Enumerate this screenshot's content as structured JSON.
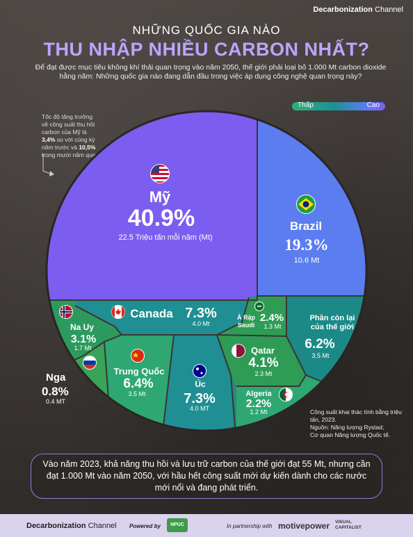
{
  "brand": {
    "name_bold": "Decarbonization",
    "name_light": "Channel"
  },
  "header": {
    "title_line1": "NHỮNG QUỐC GIA NÀO",
    "title_line2": "THU NHẬP NHIỀU CARBON NHẤT?",
    "subtitle": "Để đạt được mục tiêu không khí thải quan trọng vào năm 2050, thế giới phải loại bỏ 1.000 Mt carbon dioxide hằng năm: Những quốc gia nào đang dẫn đầu trong việc áp dụng công nghệ quan trọng này?"
  },
  "legend": {
    "low": "Thấp",
    "high": "Cao"
  },
  "note_usa": {
    "text_a": "Tốc độ tăng trưởng về công suất thu hồi carbon của Mỹ là ",
    "rate1": "3,4%",
    "text_b": " so với cùng kỳ năm trước và ",
    "rate2": "10,5%",
    "text_c": " trong mười năm qua."
  },
  "chart_data": {
    "type": "treemap",
    "unit": "Mt",
    "items": [
      {
        "name": "Mỹ",
        "pct": "40.9%",
        "value": 22.5,
        "value_label": "22.5 Triệu tấn mỗi năm (Mt)",
        "color": "#7b5ef0",
        "flag": "us-flag-icon"
      },
      {
        "name": "Brazil",
        "pct": "19.3%",
        "value": 10.6,
        "value_label": "10.6 Mt",
        "color": "#5b7df0",
        "flag": "brazil-flag-icon"
      },
      {
        "name": "Canada",
        "pct": "7.3%",
        "value": 4.0,
        "value_label": "4.0 Mt",
        "color": "#1f8f94",
        "flag": "canada-flag-icon"
      },
      {
        "name": "Ả Rập Saudi",
        "pct": "2.4%",
        "value": 1.3,
        "value_label": "1.3 Mt",
        "color": "#2e9c55",
        "flag": "saudi-flag-icon"
      },
      {
        "name": "Phần còn lại của thế giới",
        "pct": "6.2%",
        "value": 3.5,
        "value_label": "3.5 Mt",
        "color": "#1b8a86",
        "flag": ""
      },
      {
        "name": "Na Uy",
        "pct": "3.1%",
        "value": 1.7,
        "value_label": "1.7 Mt",
        "color": "#2c9a5e",
        "flag": "norway-flag-icon"
      },
      {
        "name": "Trung Quốc",
        "pct": "6.4%",
        "value": 3.5,
        "value_label": "3.5 Mt",
        "color": "#2ea773",
        "flag": "china-flag-icon"
      },
      {
        "name": "Úc",
        "pct": "7.3%",
        "value": 4.0,
        "value_label": "4.0 MT",
        "color": "#1f8f94",
        "flag": "australia-flag-icon"
      },
      {
        "name": "Qatar",
        "pct": "4.1%",
        "value": 2.3,
        "value_label": "2.3 Mt",
        "color": "#2e9c55",
        "flag": "qatar-flag-icon"
      },
      {
        "name": "Algeria",
        "pct": "2.2%",
        "value": 1.2,
        "value_label": "1.2 Mt",
        "color": "#2ea773",
        "flag": "algeria-flag-icon"
      },
      {
        "name": "Nga",
        "pct": "0.8%",
        "value": 0.4,
        "value_label": "0.4 MT",
        "color": "#3aa35a",
        "flag": "russia-flag-icon"
      }
    ]
  },
  "source": {
    "line1": "Công suất khai thác tính bằng triệu tấn, 2023.",
    "line2": "Nguồn: Năng lượng Rystad;",
    "line3": "Cơ quan Năng lượng Quốc tế."
  },
  "bottom_note": "Vào năm 2023, khả năng thu hồi và lưu trữ carbon của thế giới đạt 55 Mt, nhưng cần đạt 1.000 Mt vào năm 2050, với hầu hết công suất mới dự kiến dành cho các nước mới nổi và đang phát triển.",
  "footer": {
    "brand_bold": "Decarbonization",
    "brand_light": "Channel",
    "powered_by": "Powered by",
    "npuc": "NPUC",
    "partnership": "In partnership with",
    "motive": "motivepower",
    "visual_capitalist": "VISUAL CAPITALIST"
  }
}
